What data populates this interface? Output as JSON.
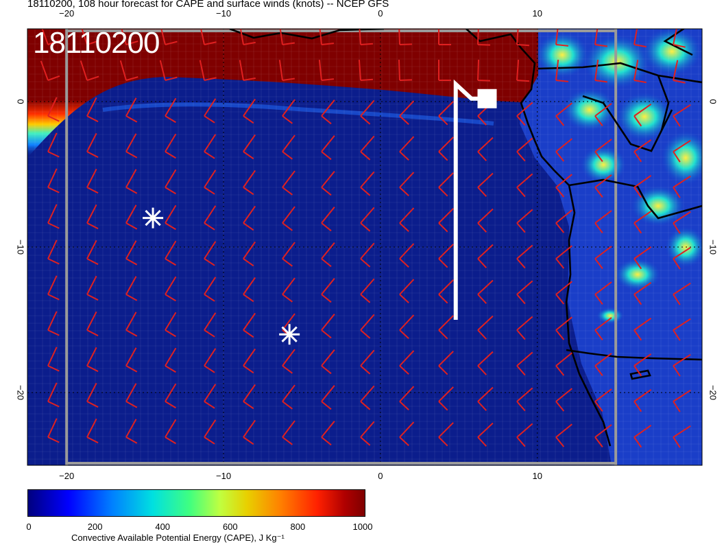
{
  "title": "18110200, 108 hour forecast for CAPE and surface winds (knots) -- NCEP GFS",
  "stamp": "18110200",
  "map": {
    "lon_range": [
      -22.5,
      20.5
    ],
    "lat_range": [
      -25,
      5
    ],
    "lon_ticks_top": [
      {
        "lon": -20,
        "label": "−20"
      },
      {
        "lon": -10,
        "label": "−10"
      },
      {
        "lon": 0,
        "label": "0"
      },
      {
        "lon": 10,
        "label": "10"
      }
    ],
    "lon_ticks_bottom": [
      {
        "lon": -20,
        "label": "−20"
      },
      {
        "lon": -10,
        "label": "−10"
      },
      {
        "lon": 0,
        "label": "0"
      },
      {
        "lon": 10,
        "label": "10"
      }
    ],
    "lat_ticks": [
      {
        "lat": 0,
        "label": "0"
      },
      {
        "lat": -10,
        "label": "−10"
      },
      {
        "lat": -20,
        "label": "−20"
      }
    ],
    "markers": [
      {
        "type": "asterisk",
        "lon": -14.5,
        "lat": -8.0
      },
      {
        "type": "asterisk",
        "lon": -5.8,
        "lat": -16.0
      }
    ],
    "flight_track": [
      [
        4.8,
        -15.0
      ],
      [
        4.8,
        1.2
      ],
      [
        5.8,
        0.2
      ],
      [
        6.8,
        0.2
      ]
    ],
    "track_endpoint": {
      "lon": 6.8,
      "lat": 0.2
    }
  },
  "colorbar": {
    "ticks": [
      {
        "value": 0,
        "label": "0"
      },
      {
        "value": 200,
        "label": "200"
      },
      {
        "value": 400,
        "label": "400"
      },
      {
        "value": 600,
        "label": "600"
      },
      {
        "value": 800,
        "label": "800"
      },
      {
        "value": 1000,
        "label": "1000"
      }
    ],
    "label": "Convective Available Potential Energy (CAPE), J Kg⁻¹",
    "range": [
      0,
      1000
    ]
  },
  "colors": {
    "ocean": "#0b1d8c",
    "high_cape": "#7f0000",
    "wind_barb": "#e02020",
    "track": "#ffffff",
    "coastline": "#000000"
  }
}
